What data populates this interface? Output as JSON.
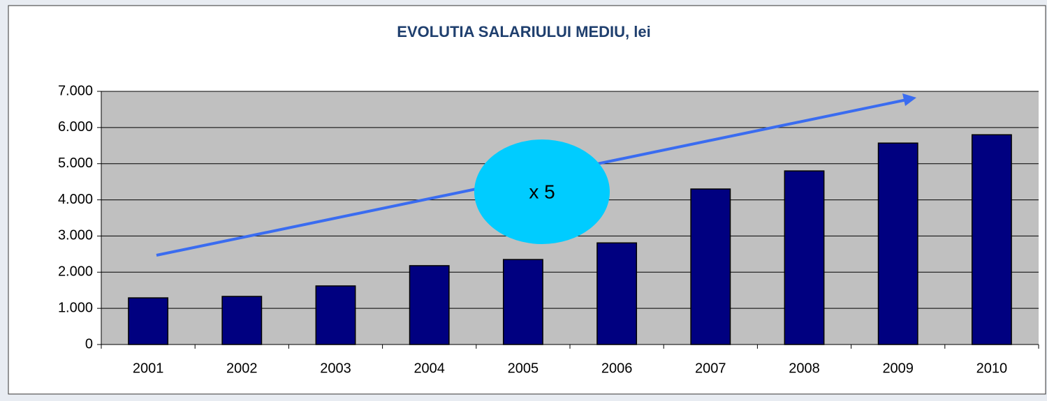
{
  "chart_data": {
    "type": "bar",
    "title": "EVOLUTIA SALARIULUI MEDIU, lei",
    "categories": [
      "2001",
      "2002",
      "2003",
      "2004",
      "2005",
      "2006",
      "2007",
      "2008",
      "2009",
      "2010"
    ],
    "values": [
      1290,
      1330,
      1620,
      2180,
      2350,
      2810,
      4300,
      4800,
      5570,
      5800
    ],
    "color": "#000080",
    "ylim": [
      0,
      7000
    ],
    "yticks": [
      0,
      {
        "value": 1000,
        "label": "1.000"
      },
      {
        "value": 2000,
        "label": "2.000"
      },
      {
        "value": 3000,
        "label": "3.000"
      },
      {
        "value": 4000,
        "label": "4.000"
      },
      {
        "value": 5000,
        "label": "5.000"
      },
      {
        "value": 6000,
        "label": "6.000"
      },
      {
        "value": 7000,
        "label": "7.000"
      }
    ],
    "grid": true,
    "annotation": "x 5"
  }
}
